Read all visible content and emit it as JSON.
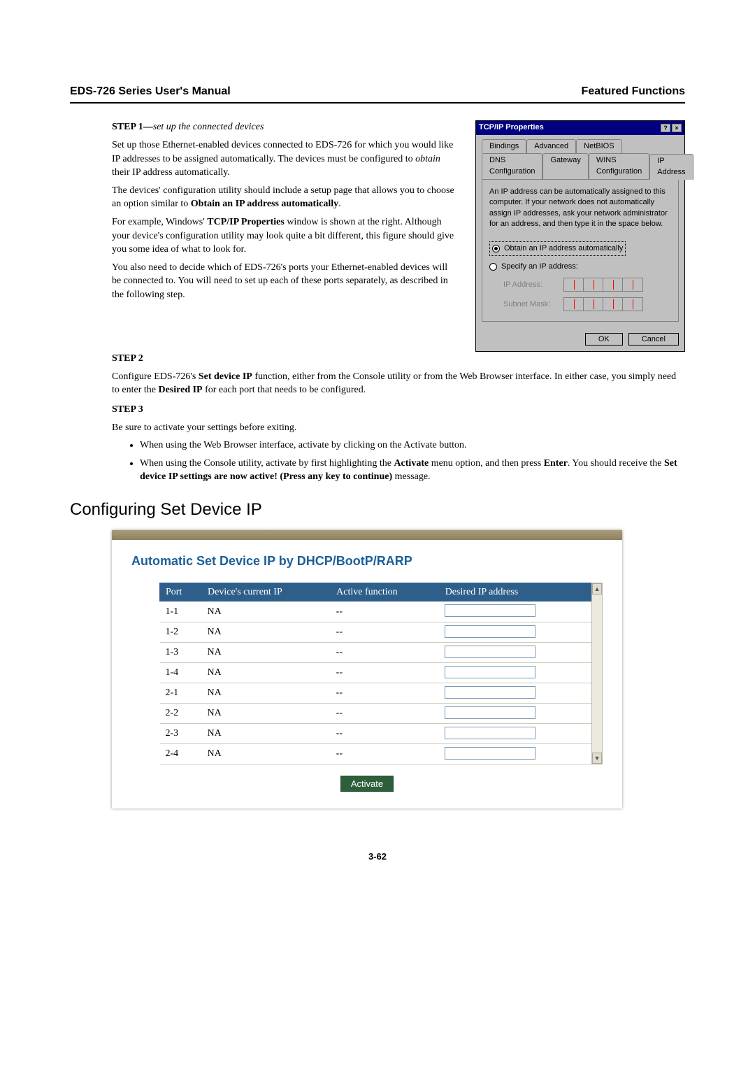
{
  "header": {
    "left": "EDS-726 Series User's Manual",
    "right": "Featured Functions"
  },
  "step1": {
    "title": "STEP 1—",
    "subtitle": "set up the connected devices",
    "p1a": "Set up those Ethernet-enabled devices connected to EDS-726 for which you would like IP addresses to be assigned automatically. The devices must be configured to ",
    "p1b_italic": "obtain",
    "p1c": " their IP address automatically.",
    "p2a": "The devices' configuration utility should include a setup page that allows you to choose an option similar to ",
    "p2b_bold": "Obtain an IP address automatically",
    "p2c": ".",
    "p3a": "For example, Windows' ",
    "p3b_bold": "TCP/IP Properties",
    "p3c": " window is shown at the right. Although your device's configuration utility may look quite a bit different, this figure should give you some idea of what to look for.",
    "p4": "You also need to decide which of EDS-726's ports your Ethernet-enabled devices will be connected to. You will need to set up each of these ports separately, as described in the following step."
  },
  "step2": {
    "title": "STEP 2",
    "p1a": "Configure EDS-726's ",
    "p1b_bold": "Set device IP",
    "p1c": " function, either from the Console utility or from the Web Browser interface. In either case, you simply need to enter the ",
    "p1d_bold": "Desired IP",
    "p1e": " for each port that needs to be configured."
  },
  "step3": {
    "title": "STEP 3",
    "p1": "Be sure to activate your settings before exiting.",
    "b1": "When using the Web Browser interface, activate by clicking on the Activate button.",
    "b2a": "When using the Console utility, activate by first highlighting the ",
    "b2b_bold": "Activate",
    "b2c": " menu option, and then press ",
    "b2d_bold": "Enter",
    "b2e": ". You should receive the ",
    "b2f_bold": "Set device IP settings are now active! (Press any key to continue)",
    "b2g": " message."
  },
  "tcpip": {
    "title": "TCP/IP Properties",
    "help_btn": "?",
    "close_btn": "×",
    "tabs_row1": {
      "t1": "Bindings",
      "t2": "Advanced",
      "t3": "NetBIOS"
    },
    "tabs_row2": {
      "t1": "DNS Configuration",
      "t2": "Gateway",
      "t3": "WINS Configuration",
      "t4": "IP Address"
    },
    "desc": "An IP address can be automatically assigned to this computer. If your network does not automatically assign IP addresses, ask your network administrator for an address, and then type it in the space below.",
    "radio1": "Obtain an IP address automatically",
    "radio2": "Specify an IP address:",
    "field1": "IP Address:",
    "field2": "Subnet Mask:",
    "ok": "OK",
    "cancel": "Cancel"
  },
  "section_title": "Configuring Set Device IP",
  "auto_panel": {
    "title": "Automatic Set Device IP by DHCP/BootP/RARP",
    "columns": {
      "c1": "Port",
      "c2": "Device's current IP",
      "c3": "Active function",
      "c4": "Desired IP address"
    },
    "rows": [
      {
        "port": "1-1",
        "ip": "NA",
        "fn": "--"
      },
      {
        "port": "1-2",
        "ip": "NA",
        "fn": "--"
      },
      {
        "port": "1-3",
        "ip": "NA",
        "fn": "--"
      },
      {
        "port": "1-4",
        "ip": "NA",
        "fn": "--"
      },
      {
        "port": "2-1",
        "ip": "NA",
        "fn": "--"
      },
      {
        "port": "2-2",
        "ip": "NA",
        "fn": "--"
      },
      {
        "port": "2-3",
        "ip": "NA",
        "fn": "--"
      },
      {
        "port": "2-4",
        "ip": "NA",
        "fn": "--"
      }
    ],
    "scroll_up": "▲",
    "scroll_down": "▼",
    "activate": "Activate"
  },
  "page_num": "3-62"
}
